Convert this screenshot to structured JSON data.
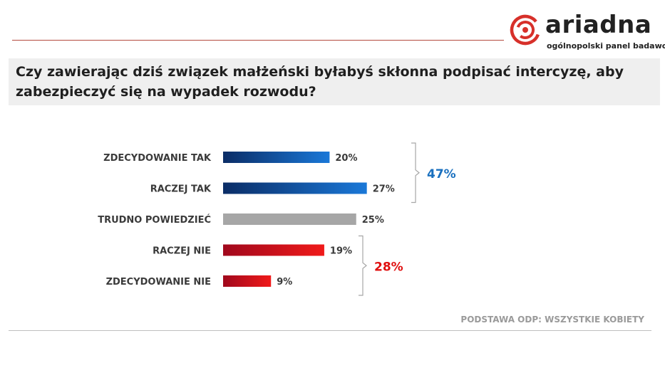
{
  "brand": {
    "name": "ariadna",
    "tagline": "ogólnopolski panel badawczy",
    "color": "#d7302a"
  },
  "question": "Czy zawierając dziś związek małżeński byłabyś skłonna podpisać intercyzę, aby zabezpieczyć się na wypadek rozwodu?",
  "footer": "PODSTAWA ODP: WSZYSTKIE KOBIETY",
  "chart_data": {
    "type": "bar",
    "orientation": "horizontal",
    "categories": [
      "ZDECYDOWANIE  TAK",
      "RACZEJ TAK",
      "TRUDNO  POWIEDZIEĆ",
      "RACZEJ NIE",
      "ZDECYDOWANIE  NIE"
    ],
    "values": [
      20,
      27,
      25,
      19,
      9
    ],
    "value_labels": [
      "20%",
      "27%",
      "25%",
      "19%",
      "9%"
    ],
    "unit": "%",
    "xlim": [
      0,
      100
    ],
    "grid": false,
    "legend": "none",
    "colors": {
      "positive_dark": "#0b2d66",
      "positive_light": "#1a78d8",
      "neutral": "#a6a6a6",
      "negative_dark": "#a0081c",
      "negative_light": "#f01a1a"
    },
    "bar_groups": [
      "positive",
      "positive",
      "neutral",
      "negative",
      "negative"
    ],
    "summaries": [
      {
        "label": "47%",
        "rows": [
          0,
          1
        ],
        "color": "#1a70bf"
      },
      {
        "label": "28%",
        "rows": [
          3,
          4
        ],
        "color": "#e01010"
      }
    ]
  }
}
